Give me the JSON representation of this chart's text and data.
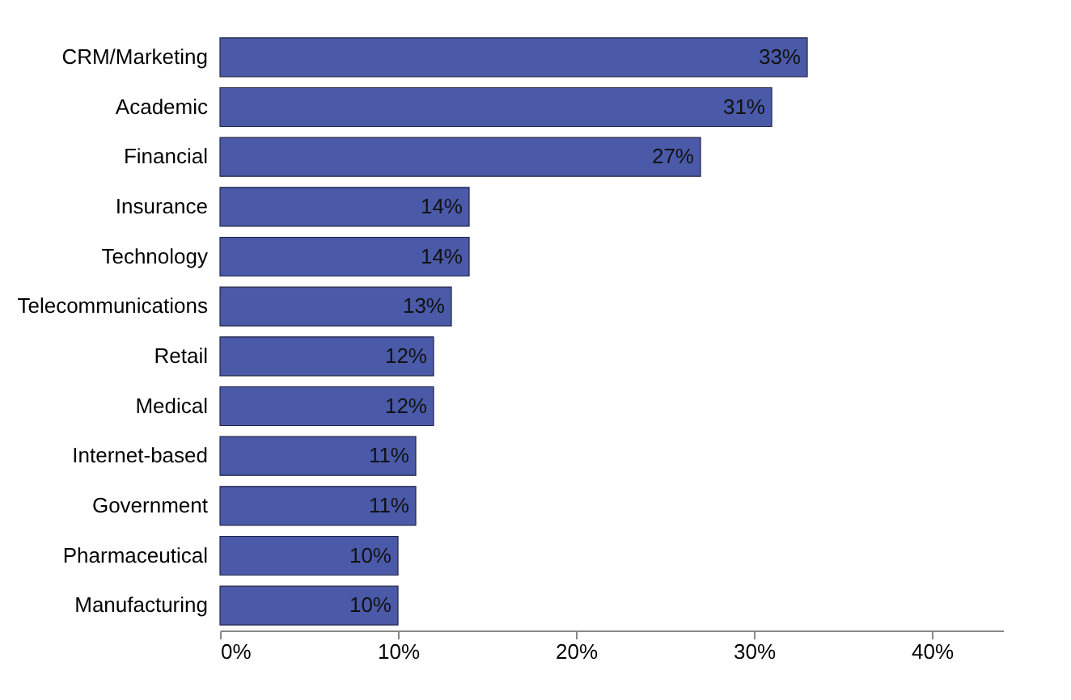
{
  "chart_data": {
    "type": "bar",
    "orientation": "horizontal",
    "categories": [
      "CRM/Marketing",
      "Academic",
      "Financial",
      "Insurance",
      "Technology",
      "Telecommunications",
      "Retail",
      "Medical",
      "Internet-based",
      "Government",
      "Pharmaceutical",
      "Manufacturing"
    ],
    "values": [
      33,
      31,
      27,
      14,
      14,
      13,
      12,
      12,
      11,
      11,
      10,
      10
    ],
    "value_labels": [
      "33%",
      "31%",
      "27%",
      "14%",
      "14%",
      "13%",
      "12%",
      "12%",
      "11%",
      "11%",
      "10%",
      "10%"
    ],
    "color": "#4a5aa8",
    "xlim": [
      0,
      44
    ],
    "xticks": [
      {
        "value": 0,
        "label": "0%"
      },
      {
        "value": 10,
        "label": "10%"
      },
      {
        "value": 20,
        "label": "20%"
      },
      {
        "value": 30,
        "label": "30%"
      },
      {
        "value": 40,
        "label": "40%"
      }
    ],
    "grid": false
  }
}
